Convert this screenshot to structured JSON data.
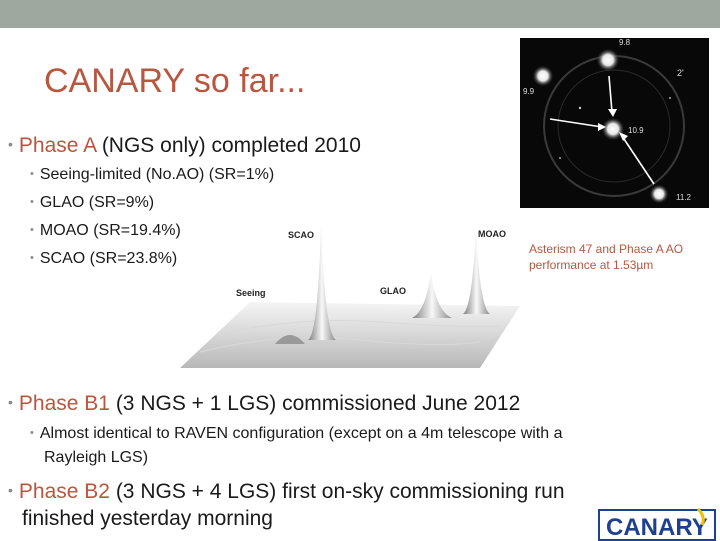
{
  "slide": {
    "title": "CANARY so far...",
    "bullets": {
      "phase_a_name": "Phase A",
      "phase_a_rest": " (NGS only) completed 2010",
      "sub": [
        "Seeing-limited (No.AO) (SR=1%)",
        "GLAO (SR=9%)",
        "MOAO (SR=19.4%)",
        "SCAO (SR=23.8%)"
      ],
      "phase_b1_name": "Phase B1",
      "phase_b1_rest": " (3 NGS + 1 LGS) commissioned June 2012",
      "b1_sub_line1": "Almost identical to RAVEN configuration (except on a 4m telescope with a",
      "b1_sub_line2": "Rayleigh LGS)",
      "phase_b2_name": "Phase B2",
      "phase_b2_rest": " (3 NGS + 4 LGS) first on-sky commissioning run",
      "phase_b2_line2": "finished yesterday morning",
      "bullet_glyph": "•"
    },
    "caption": "Asterism 47 and Phase A AO performance at 1.53µm"
  },
  "star_image": {
    "labels": [
      "9.8",
      "2'",
      "9.9",
      "10.9",
      "11.2"
    ]
  },
  "psf_image": {
    "labels": [
      "SCAO",
      "MOAO",
      "Seeing",
      "GLAO"
    ]
  },
  "logo": {
    "text": "CANARY"
  },
  "colors": {
    "accent": "#b8563f",
    "topbar": "#9ea89f",
    "logo_blue": "#1f3f8f"
  }
}
